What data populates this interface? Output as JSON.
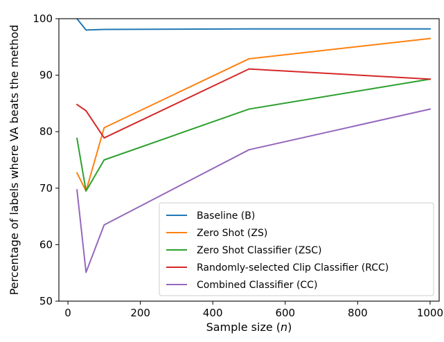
{
  "chart_data": {
    "type": "line",
    "xlabel_prefix": "Sample size (",
    "xlabel_var": "n",
    "xlabel_suffix": ")",
    "ylabel": "Percentage of labels where VA beats the method",
    "xlim": [
      -25,
      1025
    ],
    "ylim": [
      50,
      100
    ],
    "xticks": [
      0,
      200,
      400,
      600,
      800,
      1000
    ],
    "yticks": [
      50,
      60,
      70,
      80,
      90,
      100
    ],
    "grid": false,
    "legend_position": "lower-right",
    "x": [
      25,
      50,
      100,
      500,
      1000
    ],
    "series": [
      {
        "name": "Baseline (B)",
        "color": "#1f77b4",
        "values": [
          100.0,
          98.0,
          98.1,
          98.2,
          98.2
        ]
      },
      {
        "name": "Zero Shot (ZS)",
        "color": "#ff7f0e",
        "values": [
          72.7,
          69.5,
          80.7,
          92.9,
          96.5
        ]
      },
      {
        "name": "Zero Shot Classifier (ZSC)",
        "color": "#2ca02c",
        "values": [
          78.8,
          69.5,
          75.0,
          84.0,
          89.3
        ]
      },
      {
        "name": "Randomly-selected Clip Classifier (RCC)",
        "color": "#d62728",
        "values": [
          84.8,
          83.7,
          78.9,
          91.1,
          89.3
        ]
      },
      {
        "name": "Combined Classifier (CC)",
        "color": "#9467bd",
        "values": [
          69.7,
          55.1,
          63.5,
          76.8,
          84.0
        ]
      }
    ]
  }
}
